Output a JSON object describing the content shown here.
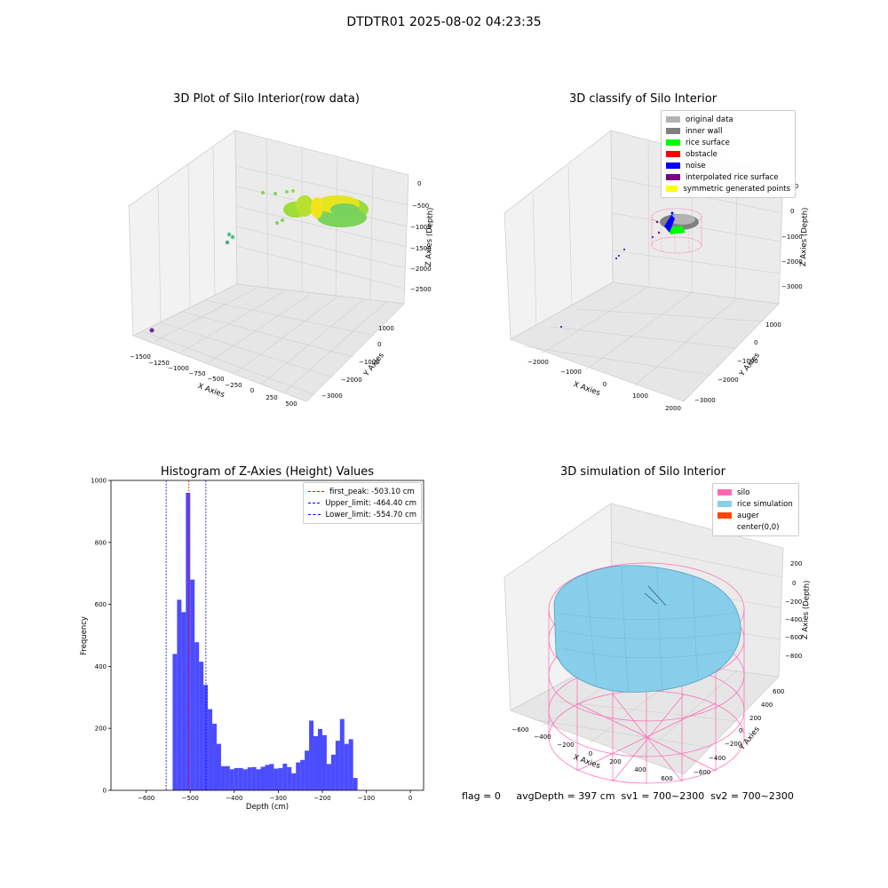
{
  "figure": {
    "title": "DTDTR01 2025-08-02 04:23:35",
    "footer": "flag = 0     avgDepth = 397 cm  sv1 = 700~2300  sv2 = 700~2300"
  },
  "panel1": {
    "title": "3D Plot of Silo Interior(row data)",
    "xlabel": "X Axies",
    "ylabel": "Y Axies",
    "zlabel": "Z Axies (Depth)",
    "xticks": [
      "−1500",
      "−1250",
      "−1000",
      "−750",
      "−500",
      "−250",
      "0",
      "250",
      "500"
    ],
    "yticks": [
      "1000",
      "0",
      "−1000",
      "−2000",
      "−3000"
    ],
    "zticks": [
      "0",
      "−500",
      "−1000",
      "−1500",
      "−2000",
      "−2500"
    ]
  },
  "panel2": {
    "title": "3D classify of Silo Interior",
    "xlabel": "X Axies",
    "ylabel": "Y Axies",
    "zlabel": "Z Axies (Depth)",
    "xticks": [
      "−2000",
      "−1000",
      "0",
      "1000",
      "2000"
    ],
    "yticks": [
      "1000",
      "0",
      "−1000",
      "−2000",
      "−3000"
    ],
    "zticks": [
      "000",
      "0",
      "−1000",
      "−2000",
      "−3000"
    ],
    "legend": [
      {
        "label": "original data",
        "color": "#b3b3b3"
      },
      {
        "label": "inner wall",
        "color": "#808080"
      },
      {
        "label": "rice surface",
        "color": "#00ff00"
      },
      {
        "label": "obstacle",
        "color": "#ff0000"
      },
      {
        "label": "noise",
        "color": "#0000ff"
      },
      {
        "label": "interpolated rice surface",
        "color": "#800080"
      },
      {
        "label": "symmetric generated points",
        "color": "#ffff00"
      }
    ]
  },
  "panel3": {
    "title": "Histogram of Z-Axies (Height) Values",
    "xlabel": "Depth (cm)",
    "ylabel": "Frequency",
    "legend": [
      {
        "label": "first_peak: -503.10 cm",
        "color": "#ff0000"
      },
      {
        "label": "Upper_limit: -464.40 cm",
        "color": "#0000ff"
      },
      {
        "label": "Lower_limit: -554.70 cm",
        "color": "#0000ff"
      }
    ]
  },
  "panel4": {
    "title": "3D simulation of Silo Interior",
    "xlabel": "X Axies",
    "ylabel": "Y Axies",
    "zlabel": "Z Axies (Depth)",
    "xticks": [
      "−600",
      "−400",
      "−200",
      "0",
      "200",
      "400",
      "600"
    ],
    "yticks": [
      "600",
      "400",
      "200",
      "0",
      "−200",
      "−400",
      "−600"
    ],
    "zticks": [
      "200",
      "0",
      "−200",
      "−400",
      "−600",
      "−800"
    ],
    "legend": [
      {
        "label": "silo",
        "color": "#ff69b4"
      },
      {
        "label": "rice simulation",
        "color": "#87ceeb"
      },
      {
        "label": "auger",
        "color": "#ff4500"
      },
      {
        "label": "center(0,0)",
        "color": "#ffffff"
      }
    ]
  },
  "chart_data": [
    {
      "type": "bar",
      "title": "Histogram of Z-Axies (Height) Values",
      "xlabel": "Depth (cm)",
      "ylabel": "Frequency",
      "xlim": [
        -680,
        30
      ],
      "ylim": [
        0,
        1000
      ],
      "xticks": [
        -600,
        -500,
        -400,
        -300,
        -200,
        -100,
        0
      ],
      "yticks": [
        0,
        200,
        400,
        600,
        800,
        1000
      ],
      "bar_color": "#0000ff",
      "bins": [
        [
          -540,
          -530,
          440
        ],
        [
          -530,
          -520,
          615
        ],
        [
          -520,
          -510,
          575
        ],
        [
          -510,
          -500,
          960
        ],
        [
          -500,
          -490,
          680
        ],
        [
          -490,
          -480,
          478
        ],
        [
          -480,
          -470,
          415
        ],
        [
          -470,
          -460,
          340
        ],
        [
          -460,
          -450,
          262
        ],
        [
          -450,
          -440,
          215
        ],
        [
          -440,
          -430,
          150
        ],
        [
          -430,
          -420,
          78
        ],
        [
          -420,
          -410,
          78
        ],
        [
          -410,
          -400,
          68
        ],
        [
          -400,
          -390,
          72
        ],
        [
          -390,
          -380,
          72
        ],
        [
          -380,
          -370,
          68
        ],
        [
          -370,
          -360,
          74
        ],
        [
          -360,
          -350,
          75
        ],
        [
          -350,
          -340,
          68
        ],
        [
          -340,
          -330,
          76
        ],
        [
          -330,
          -320,
          82
        ],
        [
          -320,
          -310,
          85
        ],
        [
          -310,
          -300,
          70
        ],
        [
          -300,
          -290,
          72
        ],
        [
          -290,
          -280,
          86
        ],
        [
          -280,
          -270,
          75
        ],
        [
          -270,
          -260,
          55
        ],
        [
          -260,
          -250,
          90
        ],
        [
          -250,
          -240,
          98
        ],
        [
          -240,
          -230,
          128
        ],
        [
          -230,
          -220,
          225
        ],
        [
          -220,
          -210,
          175
        ],
        [
          -210,
          -200,
          198
        ],
        [
          -200,
          -190,
          178
        ],
        [
          -190,
          -180,
          85
        ],
        [
          -180,
          -170,
          115
        ],
        [
          -170,
          -160,
          160
        ],
        [
          -160,
          -150,
          230
        ],
        [
          -150,
          -140,
          150
        ],
        [
          -140,
          -130,
          165
        ],
        [
          -130,
          -120,
          40
        ]
      ],
      "vlines": [
        {
          "x": -503.1,
          "label": "first_peak: -503.10 cm",
          "color": "#ff0000"
        },
        {
          "x": -464.4,
          "label": "Upper_limit: -464.40 cm",
          "color": "#0000ff"
        },
        {
          "x": -554.7,
          "label": "Lower_limit: -554.70 cm",
          "color": "#0000ff"
        }
      ],
      "legend_position": "upper right"
    }
  ]
}
